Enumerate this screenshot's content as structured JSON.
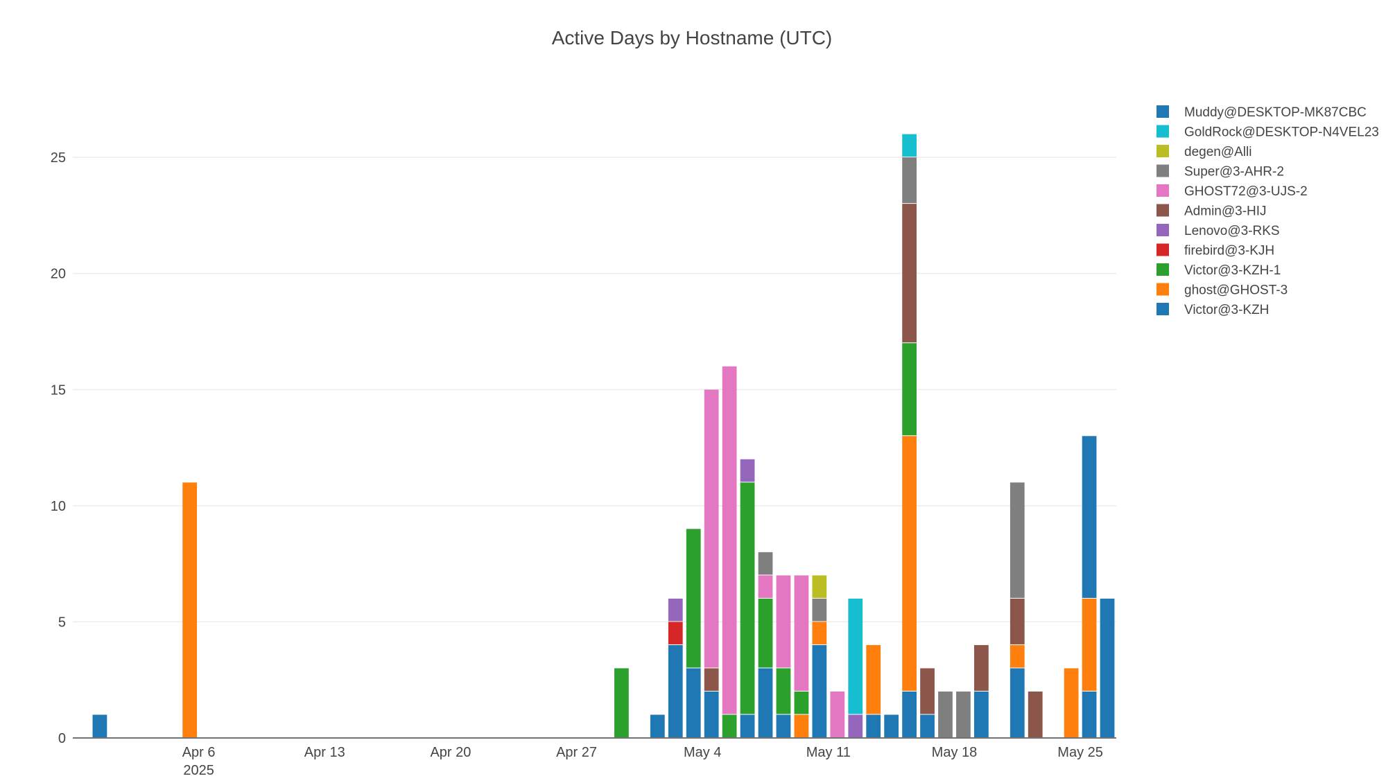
{
  "chart_data": {
    "type": "bar",
    "barmode": "stack",
    "title": "Active Days by Hostname (UTC)",
    "xlabel": "",
    "ylabel": "",
    "x_axis": {
      "type": "date",
      "range": [
        "2025-03-30",
        "2025-05-26"
      ],
      "ticks": [
        {
          "date": "2025-04-06",
          "label": "Apr 6",
          "sublabel": "2025"
        },
        {
          "date": "2025-04-13",
          "label": "Apr 13"
        },
        {
          "date": "2025-04-20",
          "label": "Apr 20"
        },
        {
          "date": "2025-04-27",
          "label": "Apr 27"
        },
        {
          "date": "2025-05-04",
          "label": "May 4"
        },
        {
          "date": "2025-05-11",
          "label": "May 11"
        },
        {
          "date": "2025-05-18",
          "label": "May 18"
        },
        {
          "date": "2025-05-25",
          "label": "May 25"
        }
      ]
    },
    "y_axis": {
      "ylim": [
        0,
        27.3
      ],
      "ticks": [
        0,
        5,
        10,
        15,
        20,
        25
      ]
    },
    "grid": true,
    "legend_position": "top-right",
    "series": [
      {
        "name": "Victor@3-KZH",
        "color": "#1f77b4",
        "points": [
          {
            "x": "2025-03-31",
            "y": 1
          },
          {
            "x": "2025-05-01",
            "y": 1
          },
          {
            "x": "2025-05-02",
            "y": 4
          },
          {
            "x": "2025-05-03",
            "y": 3
          },
          {
            "x": "2025-05-04",
            "y": 2
          },
          {
            "x": "2025-05-06",
            "y": 1
          },
          {
            "x": "2025-05-07",
            "y": 3
          },
          {
            "x": "2025-05-08",
            "y": 1
          },
          {
            "x": "2025-05-10",
            "y": 4
          },
          {
            "x": "2025-05-13",
            "y": 1
          },
          {
            "x": "2025-05-14",
            "y": 1
          },
          {
            "x": "2025-05-15",
            "y": 2
          },
          {
            "x": "2025-05-16",
            "y": 1
          },
          {
            "x": "2025-05-19",
            "y": 2
          },
          {
            "x": "2025-05-21",
            "y": 3
          },
          {
            "x": "2025-05-25",
            "y": 2
          },
          {
            "x": "2025-05-26",
            "y": 6
          }
        ]
      },
      {
        "name": "ghost@GHOST-3",
        "color": "#ff7f0e",
        "points": [
          {
            "x": "2025-04-05",
            "y": 11
          },
          {
            "x": "2025-05-09",
            "y": 1
          },
          {
            "x": "2025-05-10",
            "y": 1
          },
          {
            "x": "2025-05-13",
            "y": 3
          },
          {
            "x": "2025-05-15",
            "y": 11
          },
          {
            "x": "2025-05-21",
            "y": 1
          },
          {
            "x": "2025-05-24",
            "y": 3
          },
          {
            "x": "2025-05-25",
            "y": 4
          }
        ]
      },
      {
        "name": "Victor@3-KZH-1",
        "color": "#2ca02c",
        "points": [
          {
            "x": "2025-04-29",
            "y": 3
          },
          {
            "x": "2025-05-03",
            "y": 6
          },
          {
            "x": "2025-05-05",
            "y": 1
          },
          {
            "x": "2025-05-06",
            "y": 10
          },
          {
            "x": "2025-05-07",
            "y": 3
          },
          {
            "x": "2025-05-08",
            "y": 2
          },
          {
            "x": "2025-05-09",
            "y": 1
          },
          {
            "x": "2025-05-15",
            "y": 4
          }
        ]
      },
      {
        "name": "firebird@3-KJH",
        "color": "#d62728",
        "points": [
          {
            "x": "2025-05-02",
            "y": 1
          }
        ]
      },
      {
        "name": "Lenovo@3-RKS",
        "color": "#9467bd",
        "points": [
          {
            "x": "2025-05-02",
            "y": 1
          },
          {
            "x": "2025-05-06",
            "y": 1
          },
          {
            "x": "2025-05-12",
            "y": 1
          }
        ]
      },
      {
        "name": "Admin@3-HIJ",
        "color": "#8c564b",
        "points": [
          {
            "x": "2025-05-04",
            "y": 1
          },
          {
            "x": "2025-05-15",
            "y": 6
          },
          {
            "x": "2025-05-16",
            "y": 2
          },
          {
            "x": "2025-05-19",
            "y": 2
          },
          {
            "x": "2025-05-21",
            "y": 2
          },
          {
            "x": "2025-05-22",
            "y": 2
          }
        ]
      },
      {
        "name": "GHOST72@3-UJS-2",
        "color": "#e377c2",
        "points": [
          {
            "x": "2025-05-04",
            "y": 12
          },
          {
            "x": "2025-05-05",
            "y": 15
          },
          {
            "x": "2025-05-07",
            "y": 1
          },
          {
            "x": "2025-05-08",
            "y": 4
          },
          {
            "x": "2025-05-09",
            "y": 5
          },
          {
            "x": "2025-05-11",
            "y": 2
          }
        ]
      },
      {
        "name": "Super@3-AHR-2",
        "color": "#7f7f7f",
        "points": [
          {
            "x": "2025-05-07",
            "y": 1
          },
          {
            "x": "2025-05-10",
            "y": 1
          },
          {
            "x": "2025-05-15",
            "y": 2
          },
          {
            "x": "2025-05-17",
            "y": 2
          },
          {
            "x": "2025-05-18",
            "y": 2
          },
          {
            "x": "2025-05-21",
            "y": 5
          }
        ]
      },
      {
        "name": "degen@Alli",
        "color": "#bcbd22",
        "points": [
          {
            "x": "2025-05-10",
            "y": 1
          }
        ]
      },
      {
        "name": "GoldRock@DESKTOP-N4VEL23",
        "color": "#17becf",
        "points": [
          {
            "x": "2025-05-12",
            "y": 5
          },
          {
            "x": "2025-05-15",
            "y": 1
          }
        ]
      },
      {
        "name": "Muddy@DESKTOP-MK87CBC",
        "color": "#1f77b4",
        "points": [
          {
            "x": "2025-05-25",
            "y": 7
          }
        ]
      }
    ]
  }
}
